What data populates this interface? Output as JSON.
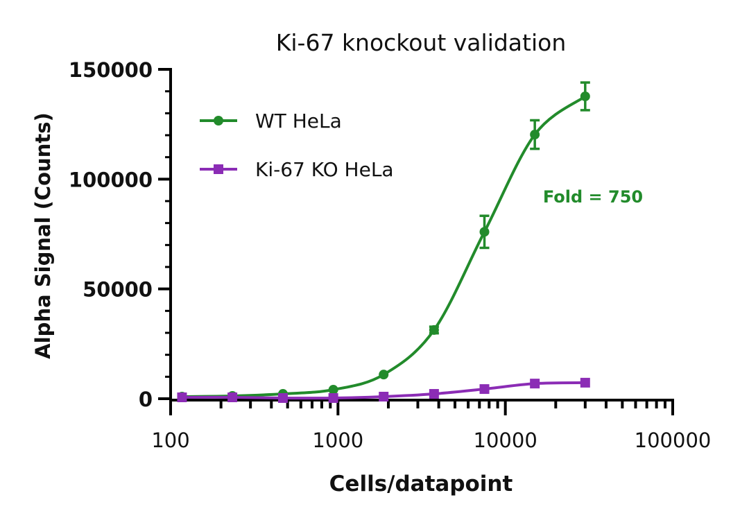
{
  "chart_data": {
    "type": "scatter",
    "title": "Ki-67 knockout validation",
    "xlabel": "Cells/datapoint",
    "ylabel": "Alpha Signal (Counts)",
    "xscale": "log",
    "xlim": [
      100,
      100000
    ],
    "ylim": [
      0,
      150000
    ],
    "xticks": [
      "100",
      "1000",
      "10000",
      "100000"
    ],
    "xtick_values": [
      100,
      1000,
      10000,
      100000
    ],
    "yticks": [
      "0",
      "50000",
      "100000",
      "150000"
    ],
    "ytick_values": [
      0,
      50000,
      100000,
      150000
    ],
    "grid": false,
    "legend_position": "top-left",
    "annotation": {
      "text": "Fold = 750",
      "color": "#228B2B"
    },
    "x": [
      117,
      234,
      469,
      938,
      1875,
      3750,
      7500,
      15000,
      30000
    ],
    "series": [
      {
        "name": "WT HeLa",
        "color": "#228B2B",
        "marker": "circle",
        "values": [
          950,
          1260,
          2200,
          4100,
          11000,
          31300,
          76000,
          120300,
          137700
        ],
        "errors": [
          0,
          0,
          0,
          0,
          0,
          1500,
          7300,
          6500,
          6300
        ]
      },
      {
        "name": "Ki-67 KO HeLa",
        "color": "#8B2CB5",
        "marker": "square",
        "values": [
          630,
          630,
          320,
          320,
          950,
          2200,
          4400,
          6900,
          7300
        ],
        "errors": [
          0,
          0,
          0,
          0,
          0,
          0,
          0,
          0,
          0
        ]
      }
    ]
  }
}
